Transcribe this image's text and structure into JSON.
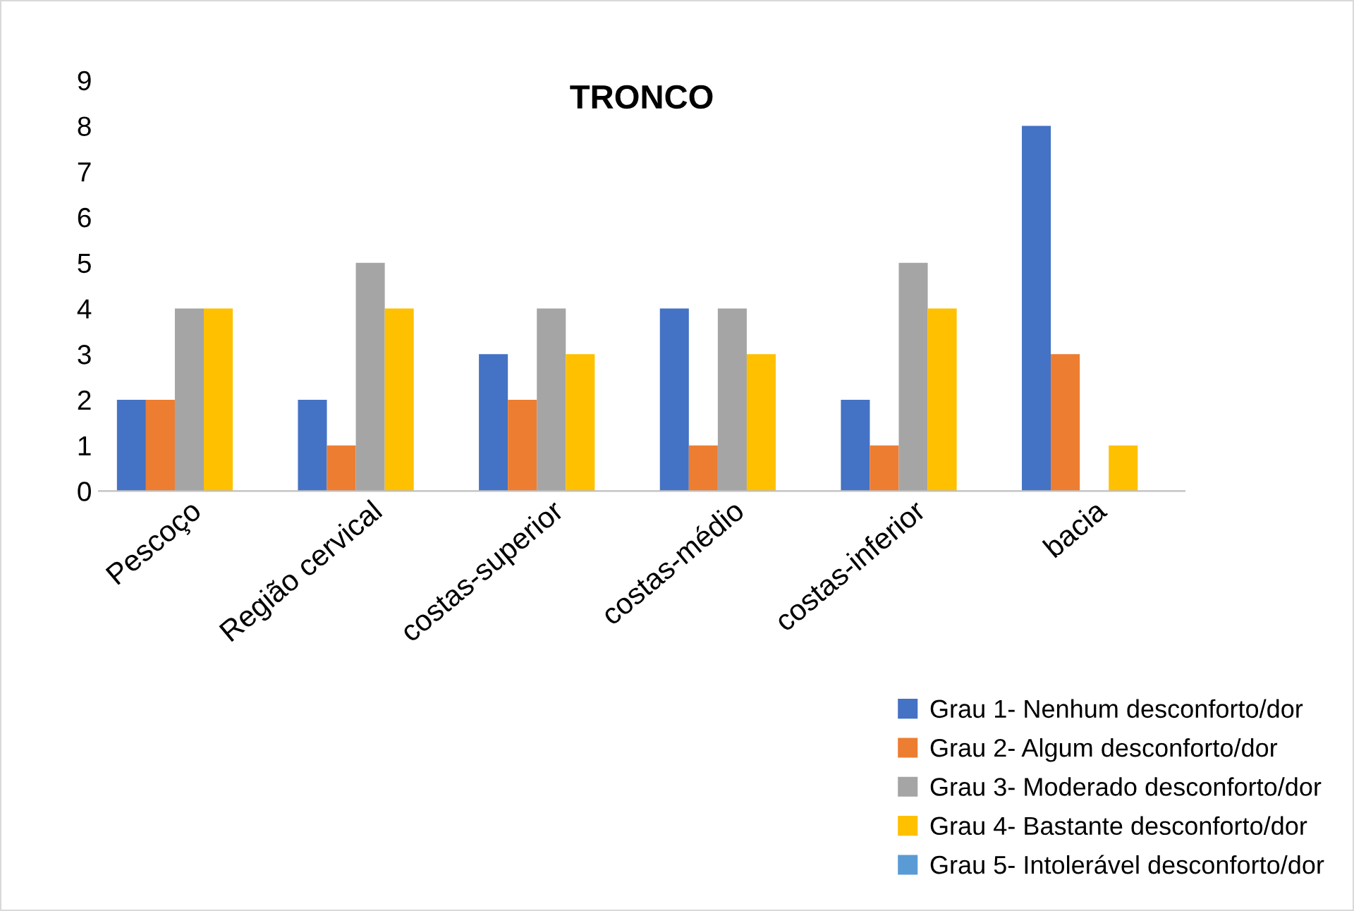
{
  "chart_data": {
    "type": "bar",
    "title": "TRONCO",
    "categories": [
      "Pescoço",
      "Região cervical",
      "costas-superior",
      "costas-médio",
      "costas-inferior",
      "bacia"
    ],
    "series": [
      {
        "name": "Grau 1- Nenhum desconforto/dor",
        "color": "#4472c4",
        "values": [
          2,
          2,
          3,
          4,
          2,
          8
        ]
      },
      {
        "name": "Grau 2- Algum desconforto/dor",
        "color": "#ed7d31",
        "values": [
          2,
          1,
          2,
          1,
          1,
          3
        ]
      },
      {
        "name": "Grau 3- Moderado desconforto/dor",
        "color": "#a5a5a5",
        "values": [
          4,
          5,
          4,
          4,
          5,
          0
        ]
      },
      {
        "name": "Grau 4- Bastante desconforto/dor",
        "color": "#ffc000",
        "values": [
          4,
          4,
          3,
          3,
          4,
          1
        ]
      },
      {
        "name": "Grau 5- Intolerável desconforto/dor",
        "color": "#5b9bd5",
        "values": [
          0,
          0,
          0,
          0,
          0,
          0
        ]
      }
    ],
    "ylim": [
      0,
      9
    ],
    "yticks": [
      0,
      1,
      2,
      3,
      4,
      5,
      6,
      7,
      8,
      9
    ],
    "grid": false,
    "legend": "bottom right"
  }
}
